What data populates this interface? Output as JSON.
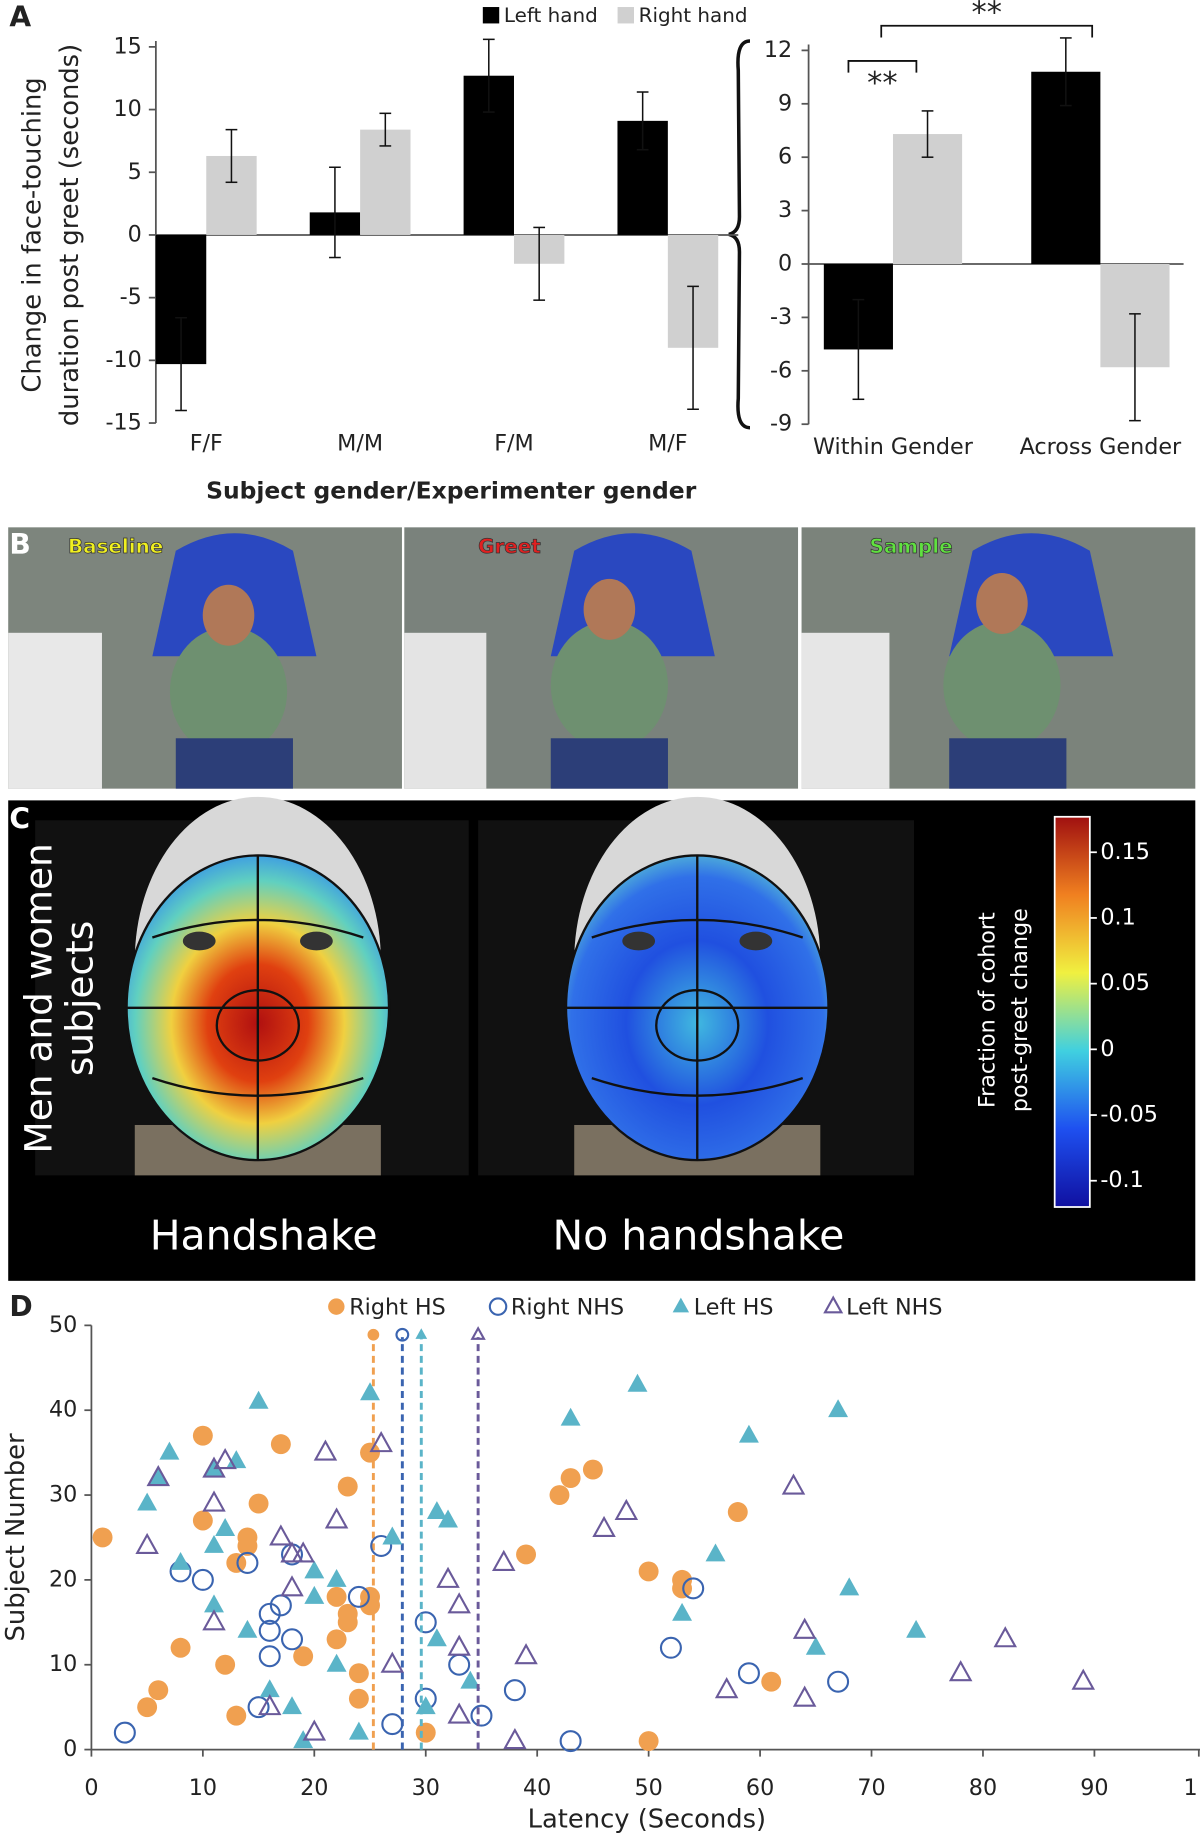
{
  "figure_labels": [
    "A",
    "B",
    "C",
    "D"
  ],
  "photos": [
    "Baseline",
    "Greet",
    "Sample"
  ],
  "heatmap": {
    "row_label": [
      "Men and women",
      "subjects"
    ],
    "columns": [
      "Handshake",
      "No handshake"
    ]
  },
  "chart_data": [
    {
      "type": "bar",
      "ylabel": [
        "Change in face-touching",
        "duration post greet (seconds)"
      ],
      "xlabel": "Subject gender/Experimenter gender",
      "categories": [
        "F/F",
        "M/M",
        "F/M",
        "M/F"
      ],
      "series": [
        {
          "name": "Left hand",
          "color": "#000000",
          "values": [
            -10.3,
            1.8,
            12.7,
            9.1
          ],
          "errors": [
            3.7,
            3.6,
            2.9,
            2.3
          ]
        },
        {
          "name": "Right hand",
          "color": "#d0d0d0",
          "values": [
            6.3,
            8.4,
            -2.3,
            -9.0
          ],
          "errors": [
            2.1,
            1.3,
            2.9,
            4.9
          ]
        }
      ],
      "ylim": [
        -15,
        15
      ],
      "yticks": [
        15,
        10,
        5,
        0,
        -5,
        -10,
        -15
      ]
    },
    {
      "type": "bar",
      "categories": [
        "Within Gender",
        "Across Gender"
      ],
      "series": [
        {
          "color": "#000000",
          "values": [
            -4.8,
            10.8
          ],
          "errors": [
            2.8,
            1.9
          ]
        },
        {
          "color": "#d0d0d0",
          "values": [
            7.3,
            -5.8
          ],
          "errors": [
            1.3,
            3.0
          ]
        }
      ],
      "annotations": [
        "**",
        "**"
      ],
      "ylim": [
        -9,
        12
      ],
      "yticks": [
        12,
        9,
        6,
        3,
        0,
        -3,
        -6,
        -9
      ]
    },
    {
      "type": "colorbar",
      "label": [
        "Fraction of cohort",
        "post-greet change"
      ],
      "zlim": [
        -0.12,
        0.177
      ],
      "zticks": [
        0.15,
        0.1,
        0.05,
        0,
        -0.05,
        -0.1
      ],
      "colors": [
        "#1010a0",
        "#1e50f0",
        "#40d0e0",
        "#f0f040",
        "#f08020",
        "#a01010"
      ]
    },
    {
      "type": "scatter",
      "xlabel": "Latency (Seconds)",
      "ylabel": "Subject Number",
      "xlim": [
        0,
        100
      ],
      "xticks": [
        0,
        10,
        20,
        30,
        40,
        50,
        60,
        70,
        80,
        90,
        {
          "value": 100,
          "label": "1"
        }
      ],
      "ylim": [
        0,
        50
      ],
      "yticks": [
        0,
        10,
        20,
        30,
        40,
        50
      ],
      "series": [
        {
          "name": "Right HS",
          "color": "#f0a050",
          "marker": "circle",
          "filled": true,
          "mean": 25.3,
          "x": [
            1,
            10,
            17,
            10,
            15,
            14,
            13,
            8,
            12,
            19,
            13,
            5,
            6,
            23,
            22,
            23,
            22,
            24,
            24,
            25,
            25,
            25,
            23,
            30,
            39,
            42,
            43,
            45,
            50,
            53,
            53,
            58,
            61,
            50,
            14
          ],
          "values": [
            25,
            37,
            36,
            27,
            29,
            24,
            22,
            12,
            10,
            11,
            4,
            5,
            7,
            31,
            18,
            15,
            13,
            9,
            6,
            18,
            17,
            35,
            16,
            2,
            23,
            30,
            32,
            33,
            21,
            20,
            19,
            28,
            8,
            1,
            25
          ]
        },
        {
          "name": "Right NHS",
          "color": "#3a64b0",
          "marker": "circle",
          "filled": false,
          "mean": 27.9,
          "x": [
            3,
            8,
            10,
            14,
            16,
            16,
            17,
            18,
            16,
            18,
            15,
            24,
            26,
            27,
            30,
            30,
            33,
            35,
            38,
            43,
            52,
            54,
            59,
            67
          ],
          "values": [
            2,
            21,
            20,
            22,
            16,
            14,
            17,
            13,
            11,
            23,
            5,
            18,
            24,
            3,
            15,
            6,
            10,
            4,
            7,
            1,
            12,
            19,
            9,
            8
          ]
        },
        {
          "name": "Left HS",
          "color": "#5ab4c8",
          "marker": "triangle",
          "filled": true,
          "mean": 29.6,
          "x": [
            15,
            7,
            5,
            6,
            11,
            13,
            12,
            11,
            8,
            11,
            14,
            16,
            18,
            19,
            20,
            20,
            22,
            22,
            24,
            25,
            27,
            31,
            32,
            31,
            34,
            30,
            43,
            49,
            56,
            53,
            59,
            67,
            65,
            68,
            74
          ],
          "values": [
            41,
            35,
            29,
            32,
            33,
            34,
            26,
            24,
            22,
            17,
            14,
            7,
            5,
            1,
            21,
            18,
            20,
            10,
            2,
            42,
            25,
            28,
            27,
            13,
            8,
            5,
            39,
            43,
            23,
            16,
            37,
            40,
            12,
            19,
            14
          ]
        },
        {
          "name": "Left NHS",
          "color": "#6a5a9a",
          "marker": "triangle",
          "filled": false,
          "mean": 34.7,
          "x": [
            6,
            5,
            11,
            11,
            12,
            11,
            17,
            18,
            19,
            18,
            16,
            20,
            21,
            22,
            26,
            27,
            32,
            33,
            33,
            33,
            37,
            38,
            39,
            46,
            48,
            57,
            63,
            64,
            64,
            78,
            82,
            89
          ],
          "values": [
            32,
            24,
            33,
            29,
            34,
            15,
            25,
            23,
            23,
            19,
            5,
            2,
            35,
            27,
            36,
            10,
            20,
            17,
            12,
            4,
            22,
            1,
            11,
            26,
            28,
            7,
            31,
            14,
            6,
            9,
            13,
            8
          ]
        }
      ]
    }
  ]
}
